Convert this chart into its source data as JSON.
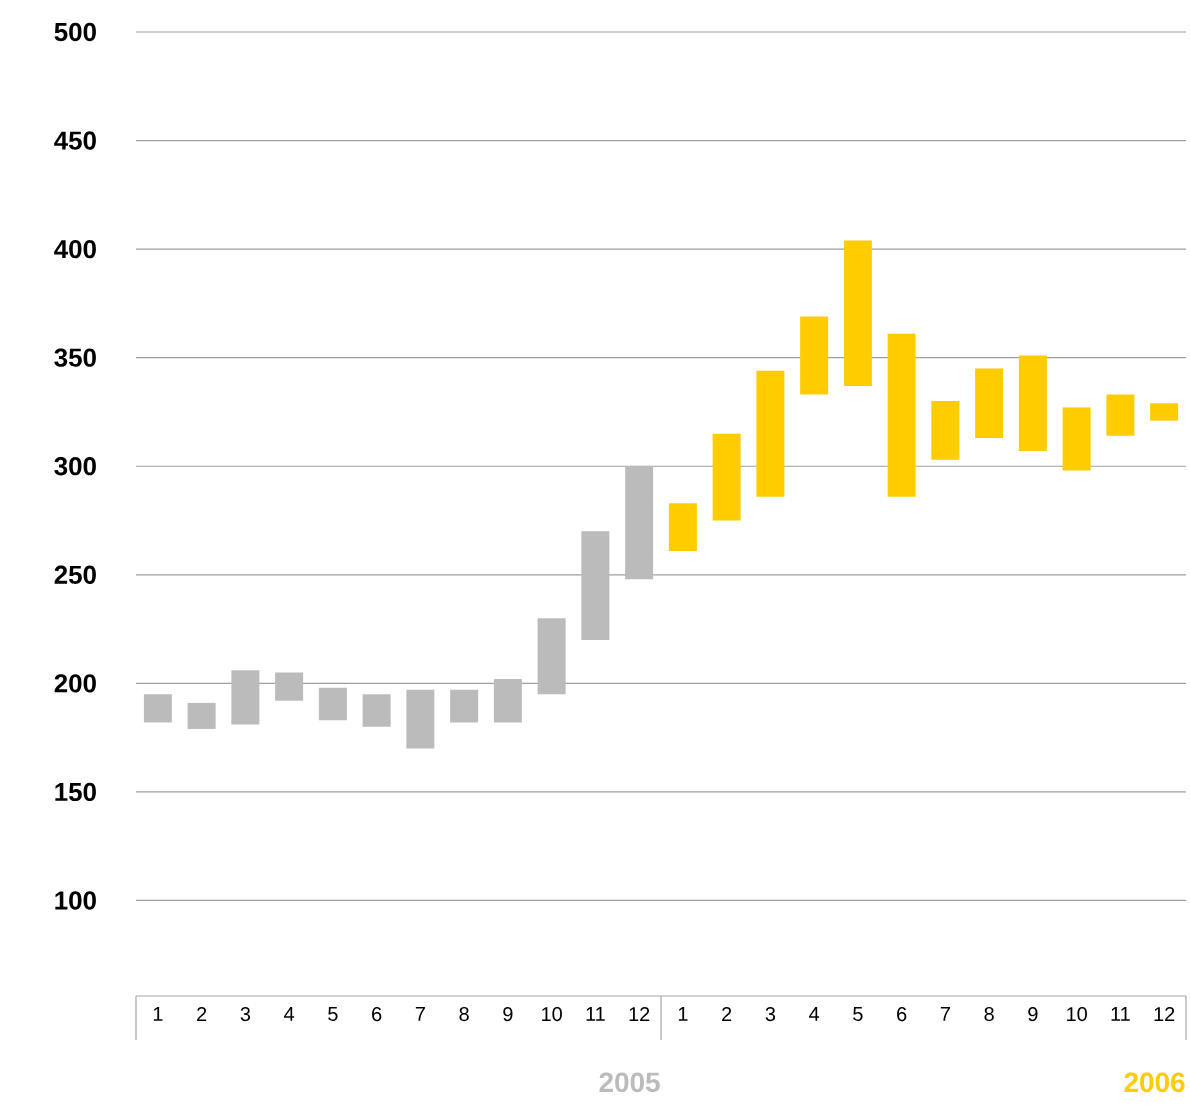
{
  "chart_data": {
    "type": "bar",
    "categories": [
      "1",
      "2",
      "3",
      "4",
      "5",
      "6",
      "7",
      "8",
      "9",
      "10",
      "11",
      "12",
      "1",
      "2",
      "3",
      "4",
      "5",
      "6",
      "7",
      "8",
      "9",
      "10",
      "11",
      "12"
    ],
    "series": [
      {
        "name": "2005",
        "color": "#bbbbbb",
        "base": [
          182,
          179,
          181,
          192,
          183,
          180,
          170,
          182,
          182,
          195,
          220,
          248,
          null,
          null,
          null,
          null,
          null,
          null,
          null,
          null,
          null,
          null,
          null,
          null
        ],
        "values": [
          13,
          12,
          25,
          13,
          15,
          15,
          27,
          15,
          20,
          35,
          50,
          52,
          null,
          null,
          null,
          null,
          null,
          null,
          null,
          null,
          null,
          null,
          null,
          null
        ]
      },
      {
        "name": "2006",
        "color": "#ffcc00",
        "base": [
          null,
          null,
          null,
          null,
          null,
          null,
          null,
          null,
          null,
          null,
          null,
          null,
          261,
          275,
          286,
          333,
          337,
          286,
          303,
          313,
          307,
          298,
          314,
          321
        ],
        "values": [
          null,
          null,
          null,
          null,
          null,
          null,
          null,
          null,
          null,
          null,
          null,
          null,
          22,
          40,
          58,
          36,
          67,
          75,
          27,
          32,
          44,
          29,
          19,
          8
        ]
      }
    ],
    "ylim": [
      56,
      500
    ],
    "yticks": [
      100,
      150,
      200,
      250,
      300,
      350,
      400,
      450,
      500
    ],
    "grid": "y"
  }
}
